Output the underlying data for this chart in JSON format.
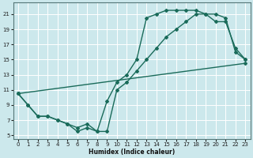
{
  "bg_color": "#cce8ec",
  "grid_color": "#ffffff",
  "line_color": "#1a6b5a",
  "xlabel": "Humidex (Indice chaleur)",
  "xlim": [
    -0.5,
    23.5
  ],
  "ylim": [
    4.5,
    22.5
  ],
  "xticks": [
    0,
    1,
    2,
    3,
    4,
    5,
    6,
    7,
    8,
    9,
    10,
    11,
    12,
    13,
    14,
    15,
    16,
    17,
    18,
    19,
    20,
    21,
    22,
    23
  ],
  "yticks": [
    5,
    7,
    9,
    11,
    13,
    15,
    17,
    19,
    21
  ],
  "line1_x": [
    0,
    1,
    2,
    3,
    4,
    5,
    6,
    7,
    8,
    9,
    10,
    11,
    12,
    13,
    14,
    15,
    16,
    17,
    18,
    19,
    20,
    21,
    22,
    23
  ],
  "line1_y": [
    10.5,
    9.0,
    7.5,
    7.5,
    7.0,
    6.5,
    6.0,
    6.5,
    5.5,
    9.5,
    12.0,
    13.0,
    15.0,
    20.5,
    21.0,
    21.5,
    21.5,
    21.5,
    21.5,
    21.0,
    20.0,
    20.0,
    16.5,
    15.0
  ],
  "line2_x": [
    0,
    1,
    2,
    3,
    4,
    5,
    6,
    7,
    8,
    9,
    10,
    11,
    12,
    13,
    14,
    15,
    16,
    17,
    18,
    19,
    20,
    21,
    22,
    23
  ],
  "line2_y": [
    10.5,
    9.0,
    7.5,
    7.5,
    7.0,
    6.5,
    5.5,
    6.0,
    5.5,
    5.5,
    11.0,
    12.0,
    13.5,
    15.0,
    16.5,
    18.0,
    19.0,
    20.0,
    21.0,
    21.0,
    21.0,
    20.5,
    16.0,
    15.0
  ],
  "line3_x": [
    0,
    23
  ],
  "line3_y": [
    10.5,
    14.5
  ]
}
